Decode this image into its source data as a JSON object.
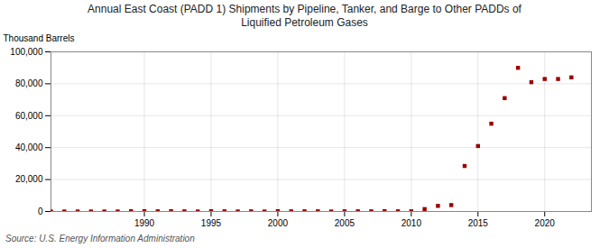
{
  "chart_data": {
    "type": "scatter",
    "title": "Annual East Coast (PADD 1) Shipments by Pipeline, Tanker, and Barge to Other PADDs of\nLiquified Petroleum Gases",
    "ylabel": "Thousand Barrels",
    "annotations": [
      "Source: U.S. Energy Information Administration"
    ],
    "color": "#990000",
    "marker": "square",
    "grid": true,
    "xlim": [
      1983,
      2023.5
    ],
    "xticks": [
      1990,
      1995,
      2000,
      2005,
      2010,
      2015,
      2020
    ],
    "ylim": [
      0,
      100000
    ],
    "yticks": [
      0,
      {
        "value": 20000,
        "label": "20,000"
      },
      {
        "value": 40000,
        "label": "40,000"
      },
      {
        "value": 60000,
        "label": "60,000"
      },
      {
        "value": 80000,
        "label": "80,000"
      },
      {
        "value": 100000,
        "label": "100,000"
      }
    ],
    "x": [
      1983,
      1984,
      1985,
      1986,
      1987,
      1988,
      1989,
      1990,
      1991,
      1992,
      1993,
      1994,
      1995,
      1996,
      1997,
      1998,
      1999,
      2000,
      2001,
      2002,
      2003,
      2004,
      2005,
      2006,
      2007,
      2008,
      2009,
      2010,
      2011,
      2012,
      2013,
      2014,
      2015,
      2016,
      2017,
      2018,
      2019,
      2020,
      2021,
      2022
    ],
    "values": [
      0,
      0,
      0,
      0,
      0,
      0,
      150,
      200,
      100,
      200,
      100,
      0,
      200,
      100,
      0,
      100,
      0,
      200,
      100,
      100,
      100,
      0,
      100,
      100,
      100,
      200,
      100,
      100,
      1500,
      3500,
      4000,
      28500,
      41000,
      55000,
      71000,
      90000,
      81000,
      83000,
      83000,
      84000
    ]
  }
}
